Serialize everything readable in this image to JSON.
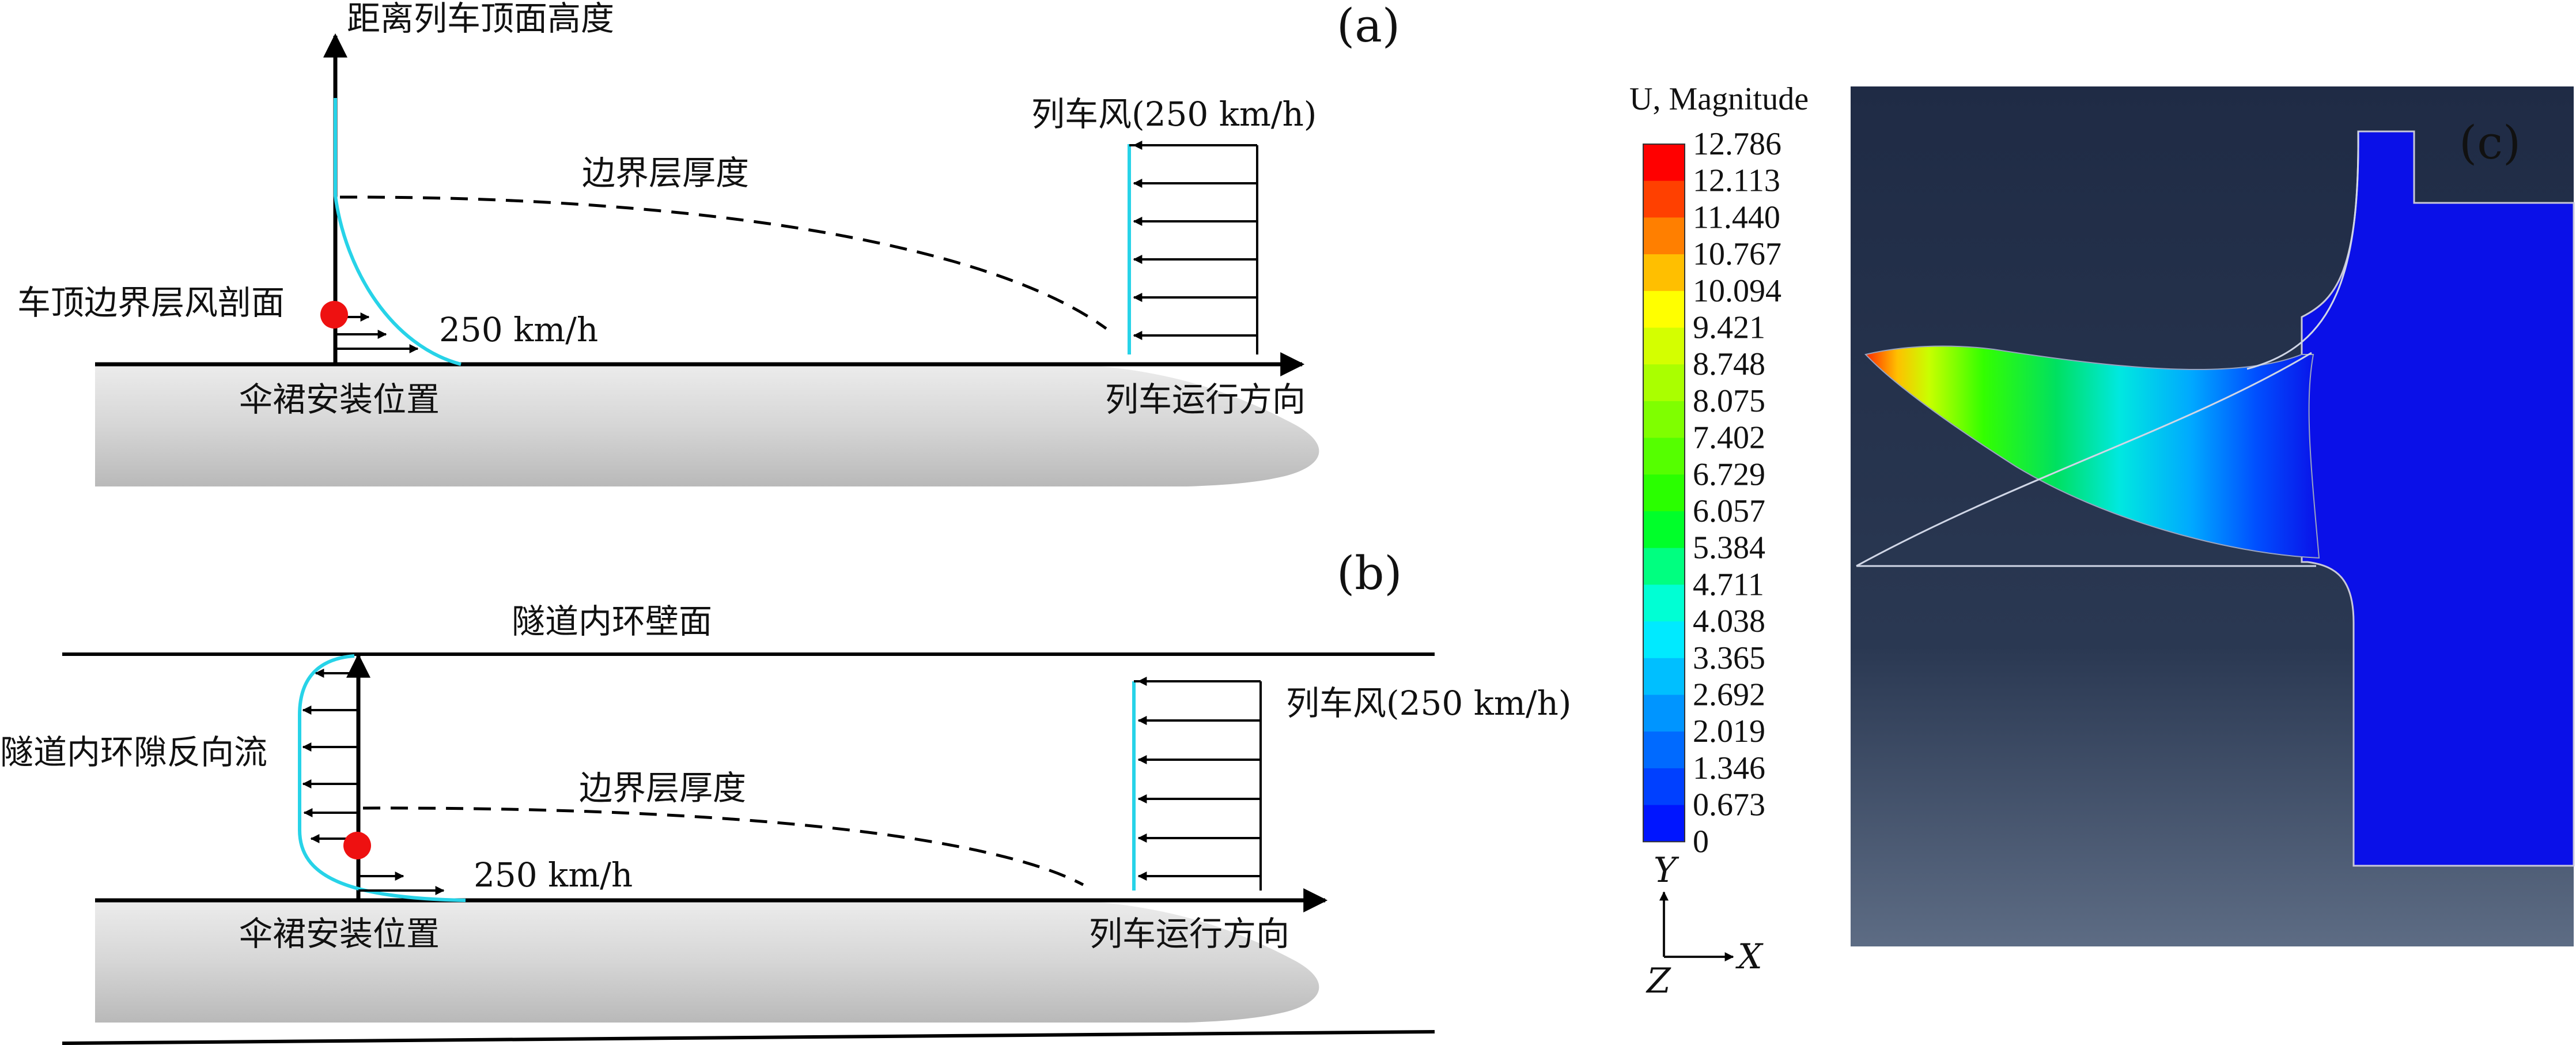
{
  "panels": {
    "a": {
      "label": "(a)",
      "height_axis_label": "距离列车顶面高度",
      "boundary_layer_thickness": "边界层厚度",
      "train_wind": "列车风(250 km/h)",
      "roof_profile": "车顶边界层风剖面",
      "speed": "250 km/h",
      "mount_position": "伞裙安装位置",
      "direction": "列车运行方向"
    },
    "b": {
      "label": "(b)",
      "tunnel_wall": "隧道内环壁面",
      "train_wind": "列车风(250 km/h)",
      "reverse_flow": "隧道内环隙反向流",
      "boundary_layer_thickness": "边界层厚度",
      "speed": "250 km/h",
      "mount_position": "伞裙安装位置",
      "direction": "列车运行方向"
    },
    "c": {
      "label": "(c)",
      "legend_title": "U, Magnitude",
      "legend_values": [
        "12.786",
        "12.113",
        "11.440",
        "10.767",
        "10.094",
        "9.421",
        "8.748",
        "8.075",
        "7.402",
        "6.729",
        "6.057",
        "5.384",
        "4.711",
        "4.038",
        "3.365",
        "2.692",
        "2.019",
        "1.346",
        "0.673",
        "0"
      ],
      "legend_colors": [
        "#ff0000",
        "#ff4000",
        "#ff7f00",
        "#ffbf00",
        "#ffff00",
        "#d4ff00",
        "#aaff00",
        "#7fff00",
        "#55ff00",
        "#2aff00",
        "#00ff2a",
        "#00ff80",
        "#00ffd4",
        "#00eaff",
        "#00bfff",
        "#0095ff",
        "#006aff",
        "#0040ff",
        "#0015ff"
      ],
      "axis_y": "Y",
      "axis_x": "X",
      "axis_z": "Z"
    }
  },
  "colors": {
    "profile": "#27d3e8",
    "marker": "#ee1111",
    "fe_background_top": "#1f2b45",
    "fe_background_bottom": "#5d6c84",
    "fe_mesh": "#0a10e8"
  }
}
